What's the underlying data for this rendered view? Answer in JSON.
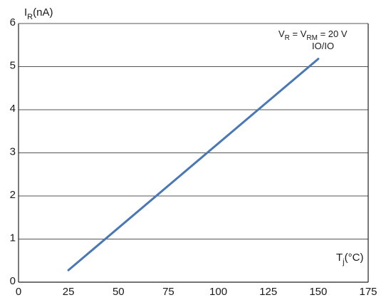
{
  "chart_data": {
    "type": "line",
    "x_ticks": [
      0,
      25,
      50,
      75,
      100,
      125,
      150,
      175
    ],
    "y_ticks": [
      0,
      1,
      2,
      3,
      4,
      5,
      6
    ],
    "xlim": [
      0,
      175
    ],
    "ylim": [
      0,
      6
    ],
    "grid": "horizontal",
    "ylabel": {
      "main": "I",
      "sub": "R",
      "rest": "(nA)"
    },
    "xlabel": {
      "main": "T",
      "sub": "j",
      "rest": "(°C)"
    },
    "annotation": {
      "line1_a": "V",
      "line1_a_sub": "R",
      "line1_b": " = V",
      "line1_b_sub": "RM",
      "line1_c": " = 20 V",
      "line2": "IO/IO"
    },
    "series": [
      {
        "color": "#4a78b4",
        "points": [
          [
            25,
            0.28
          ],
          [
            150,
            5.18
          ]
        ]
      }
    ]
  }
}
